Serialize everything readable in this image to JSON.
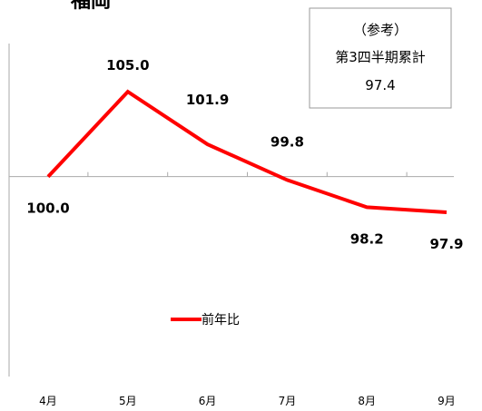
{
  "chart_data": {
    "type": "line",
    "title": "福岡",
    "categories": [
      "4月",
      "5月",
      "6月",
      "7月",
      "8月",
      "9月"
    ],
    "series": [
      {
        "name": "前年比",
        "values": [
          100.0,
          105.0,
          101.9,
          99.8,
          98.2,
          97.9
        ],
        "color": "#ff0000"
      }
    ],
    "data_labels": [
      "100.0",
      "105.0",
      "101.9",
      "99.8",
      "98.2",
      "97.9"
    ],
    "ylim": [
      86.2,
      110.4
    ],
    "baseline": 100,
    "grid": false,
    "legend_position": "bottom-center"
  },
  "reference_box": {
    "line1": "（参考）",
    "line2": "第3四半期累計",
    "line3": "97.4"
  },
  "colors": {
    "series": "#ff0000",
    "axis": "#aaaaaa",
    "box_border": "#999999"
  }
}
